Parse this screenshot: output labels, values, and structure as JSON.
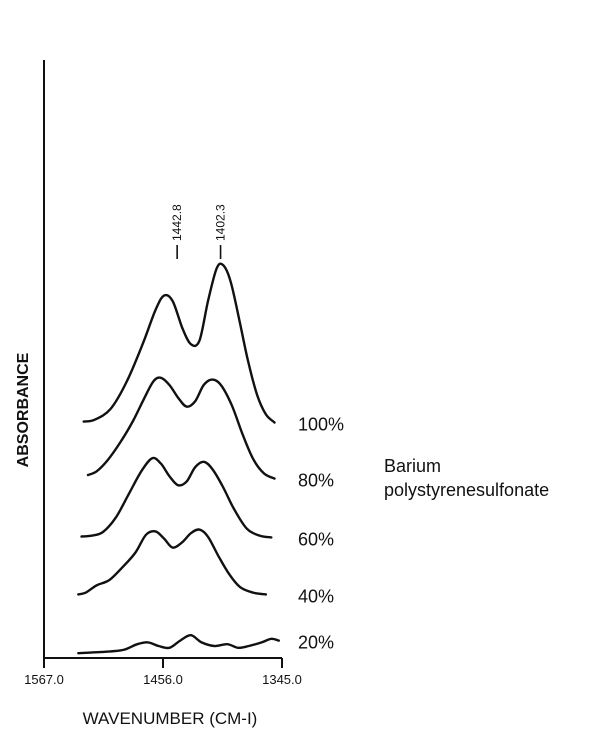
{
  "chart_data": {
    "type": "line",
    "title": "",
    "xlabel": "WAVENUMBER (CM-I)",
    "ylabel": "ABSORBANCE",
    "x_ticks": [
      "1567.0",
      "1456.0",
      "1345.0"
    ],
    "x_tick_values": [
      1567.0,
      1456.0,
      1345.0
    ],
    "xlim": [
      1567.0,
      1345.0
    ],
    "peak_labels": [
      {
        "text": "1442.8",
        "x": 1442.8
      },
      {
        "text": "1402.3",
        "x": 1402.3
      }
    ],
    "group_label": [
      "Barium",
      "polystyrenesulfonate"
    ],
    "grid": false,
    "series": [
      {
        "name": "100%",
        "offset": 4.0,
        "points": [
          [
            1530,
            0.06
          ],
          [
            1520,
            0.08
          ],
          [
            1505,
            0.2
          ],
          [
            1490,
            0.5
          ],
          [
            1475,
            0.92
          ],
          [
            1463,
            1.3
          ],
          [
            1455,
            1.46
          ],
          [
            1447,
            1.4
          ],
          [
            1438,
            1.1
          ],
          [
            1430,
            0.92
          ],
          [
            1422,
            0.96
          ],
          [
            1414,
            1.4
          ],
          [
            1406,
            1.76
          ],
          [
            1400,
            1.8
          ],
          [
            1393,
            1.62
          ],
          [
            1385,
            1.2
          ],
          [
            1377,
            0.75
          ],
          [
            1368,
            0.35
          ],
          [
            1360,
            0.14
          ],
          [
            1352,
            0.05
          ]
        ]
      },
      {
        "name": "80%",
        "offset": 3.0,
        "points": [
          [
            1526,
            0.1
          ],
          [
            1518,
            0.14
          ],
          [
            1508,
            0.26
          ],
          [
            1496,
            0.46
          ],
          [
            1484,
            0.7
          ],
          [
            1474,
            0.94
          ],
          [
            1465,
            1.14
          ],
          [
            1458,
            1.18
          ],
          [
            1450,
            1.1
          ],
          [
            1442,
            0.96
          ],
          [
            1434,
            0.86
          ],
          [
            1426,
            0.92
          ],
          [
            1418,
            1.1
          ],
          [
            1410,
            1.16
          ],
          [
            1402,
            1.1
          ],
          [
            1392,
            0.88
          ],
          [
            1382,
            0.56
          ],
          [
            1372,
            0.28
          ],
          [
            1362,
            0.12
          ],
          [
            1352,
            0.06
          ]
        ]
      },
      {
        "name": "60%",
        "offset": 2.0,
        "points": [
          [
            1532,
            0.05
          ],
          [
            1522,
            0.06
          ],
          [
            1512,
            0.1
          ],
          [
            1500,
            0.26
          ],
          [
            1488,
            0.52
          ],
          [
            1476,
            0.78
          ],
          [
            1466,
            0.92
          ],
          [
            1458,
            0.86
          ],
          [
            1450,
            0.72
          ],
          [
            1442,
            0.62
          ],
          [
            1434,
            0.66
          ],
          [
            1426,
            0.82
          ],
          [
            1418,
            0.88
          ],
          [
            1410,
            0.8
          ],
          [
            1400,
            0.6
          ],
          [
            1390,
            0.36
          ],
          [
            1378,
            0.14
          ],
          [
            1366,
            0.06
          ],
          [
            1355,
            0.04
          ]
        ]
      },
      {
        "name": "40%",
        "offset": 1.0,
        "points": [
          [
            1535,
            0.04
          ],
          [
            1528,
            0.06
          ],
          [
            1518,
            0.14
          ],
          [
            1506,
            0.2
          ],
          [
            1494,
            0.34
          ],
          [
            1482,
            0.5
          ],
          [
            1472,
            0.7
          ],
          [
            1463,
            0.74
          ],
          [
            1455,
            0.66
          ],
          [
            1447,
            0.56
          ],
          [
            1438,
            0.62
          ],
          [
            1430,
            0.72
          ],
          [
            1422,
            0.76
          ],
          [
            1414,
            0.68
          ],
          [
            1404,
            0.46
          ],
          [
            1394,
            0.26
          ],
          [
            1384,
            0.12
          ],
          [
            1372,
            0.06
          ],
          [
            1360,
            0.04
          ]
        ]
      },
      {
        "name": "20%",
        "offset": 0.0,
        "points": [
          [
            1535,
            0.02
          ],
          [
            1520,
            0.03
          ],
          [
            1505,
            0.04
          ],
          [
            1492,
            0.06
          ],
          [
            1480,
            0.12
          ],
          [
            1470,
            0.14
          ],
          [
            1460,
            0.1
          ],
          [
            1450,
            0.08
          ],
          [
            1440,
            0.16
          ],
          [
            1430,
            0.22
          ],
          [
            1420,
            0.14
          ],
          [
            1408,
            0.1
          ],
          [
            1396,
            0.12
          ],
          [
            1386,
            0.08
          ],
          [
            1376,
            0.1
          ],
          [
            1364,
            0.14
          ],
          [
            1355,
            0.18
          ],
          [
            1348,
            0.16
          ]
        ]
      }
    ]
  }
}
